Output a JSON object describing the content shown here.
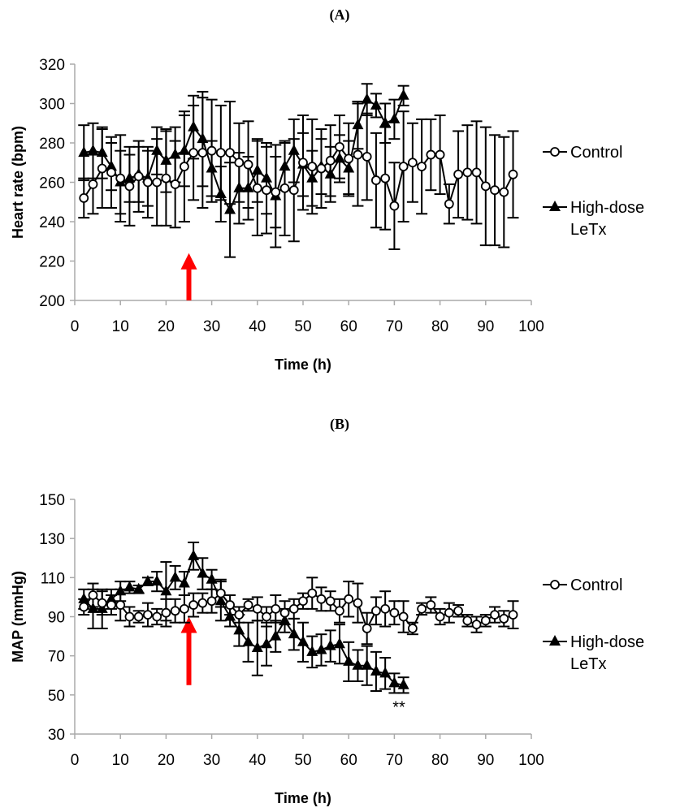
{
  "chart_data": [
    {
      "type": "line",
      "panel_label": "(A)",
      "xlabel": "Time (h)",
      "ylabel": "Heart rate (bpm)",
      "xlim": [
        0,
        100
      ],
      "ylim": [
        200,
        320
      ],
      "xticks": [
        0,
        10,
        20,
        30,
        40,
        50,
        60,
        70,
        80,
        90,
        100
      ],
      "yticks": [
        200,
        220,
        240,
        260,
        280,
        300,
        320
      ],
      "grid": false,
      "legend_position": "right",
      "series": [
        {
          "name": "Control",
          "marker": "open-circle",
          "x": [
            2,
            4,
            6,
            8,
            10,
            12,
            14,
            16,
            18,
            20,
            22,
            24,
            26,
            28,
            30,
            32,
            34,
            36,
            38,
            40,
            42,
            44,
            46,
            48,
            50,
            52,
            54,
            56,
            58,
            60,
            62,
            64,
            66,
            68,
            70,
            72,
            74,
            76,
            78,
            80,
            82,
            84,
            86,
            88,
            90,
            92,
            94,
            96
          ],
          "values": [
            252,
            259,
            267,
            265,
            262,
            258,
            263,
            260,
            260,
            262,
            259,
            268,
            275,
            275,
            276,
            275,
            275,
            270,
            269,
            257,
            256,
            255,
            257,
            256,
            270,
            268,
            267,
            271,
            278,
            272,
            274,
            273,
            261,
            262,
            248,
            268,
            270,
            268,
            274,
            274,
            249,
            264,
            265,
            265,
            258,
            256,
            255,
            264
          ],
          "err": [
            10,
            15,
            20,
            18,
            22,
            20,
            18,
            18,
            22,
            24,
            22,
            28,
            24,
            28,
            26,
            24,
            26,
            20,
            22,
            24,
            22,
            18,
            24,
            26,
            24,
            24,
            20,
            18,
            16,
            18,
            26,
            22,
            24,
            26,
            22,
            28,
            20,
            24,
            18,
            20,
            10,
            22,
            24,
            26,
            30,
            28,
            28,
            22
          ]
        },
        {
          "name": "High-dose LeTx",
          "marker": "filled-triangle",
          "x": [
            2,
            4,
            6,
            8,
            10,
            12,
            14,
            16,
            18,
            20,
            22,
            24,
            26,
            28,
            30,
            32,
            34,
            36,
            38,
            40,
            42,
            44,
            46,
            48,
            50,
            52,
            54,
            56,
            58,
            60,
            62,
            64,
            66,
            68,
            70,
            72
          ],
          "values": [
            275,
            276,
            275,
            268,
            260,
            262,
            264,
            262,
            276,
            271,
            274,
            276,
            288,
            282,
            267,
            254,
            246,
            257,
            257,
            266,
            262,
            253,
            268,
            276,
            269,
            262,
            268,
            264,
            272,
            267,
            289,
            302,
            299,
            290,
            292,
            304
          ],
          "err": [
            14,
            14,
            13,
            12,
            16,
            12,
            14,
            14,
            12,
            16,
            14,
            18,
            16,
            24,
            14,
            14,
            24,
            18,
            16,
            16,
            18,
            26,
            12,
            16,
            16,
            14,
            14,
            14,
            12,
            14,
            12,
            8,
            6,
            10,
            10,
            5
          ]
        }
      ],
      "annotations": [
        {
          "type": "red-arrow",
          "x": 25,
          "y_from": 200,
          "y_to": 224
        }
      ]
    },
    {
      "type": "line",
      "panel_label": "(B)",
      "xlabel": "Time (h)",
      "ylabel": "MAP (mmHg)",
      "xlim": [
        0,
        100
      ],
      "ylim": [
        30,
        150
      ],
      "xticks": [
        0,
        10,
        20,
        30,
        40,
        50,
        60,
        70,
        80,
        90,
        100
      ],
      "yticks": [
        30,
        50,
        70,
        90,
        110,
        130,
        150
      ],
      "grid": false,
      "legend_position": "right",
      "series": [
        {
          "name": "Control",
          "marker": "open-circle",
          "x": [
            2,
            4,
            6,
            8,
            10,
            12,
            14,
            16,
            18,
            20,
            22,
            24,
            26,
            28,
            30,
            32,
            34,
            36,
            38,
            40,
            42,
            44,
            46,
            48,
            50,
            52,
            54,
            56,
            58,
            60,
            62,
            64,
            66,
            68,
            70,
            72,
            74,
            76,
            78,
            80,
            82,
            84,
            86,
            88,
            90,
            92,
            94,
            96
          ],
          "values": [
            95,
            101,
            97,
            96,
            96,
            90,
            90,
            91,
            90,
            92,
            93,
            94,
            96,
            97,
            98,
            102,
            96,
            91,
            96,
            94,
            90,
            94,
            92,
            94,
            98,
            102,
            99,
            98,
            93,
            99,
            97,
            84,
            93,
            94,
            92,
            90,
            84,
            94,
            96,
            90,
            92,
            93,
            88,
            86,
            88,
            91,
            89,
            91
          ],
          "err": [
            4,
            6,
            6,
            5,
            8,
            5,
            3,
            6,
            4,
            7,
            6,
            7,
            6,
            5,
            6,
            7,
            5,
            4,
            3,
            6,
            5,
            7,
            6,
            5,
            4,
            8,
            6,
            5,
            6,
            9,
            10,
            8,
            7,
            9,
            6,
            8,
            3,
            3,
            4,
            4,
            5,
            3,
            3,
            4,
            3,
            4,
            4,
            7
          ]
        },
        {
          "name": "High-dose LeTx",
          "marker": "filled-triangle",
          "x": [
            2,
            4,
            6,
            8,
            10,
            12,
            14,
            16,
            18,
            20,
            22,
            24,
            26,
            28,
            30,
            32,
            34,
            36,
            38,
            40,
            42,
            44,
            46,
            48,
            50,
            52,
            54,
            56,
            58,
            60,
            62,
            64,
            66,
            68,
            70,
            72
          ],
          "values": [
            99,
            94,
            94,
            99,
            103,
            105,
            104,
            108,
            108,
            103,
            110,
            107,
            121,
            112,
            109,
            98,
            90,
            83,
            77,
            74,
            76,
            80,
            88,
            81,
            77,
            72,
            73,
            75,
            76,
            67,
            65,
            65,
            62,
            61,
            56,
            55
          ],
          "err": [
            5,
            10,
            10,
            5,
            5,
            3,
            2,
            2,
            5,
            15,
            6,
            6,
            7,
            8,
            5,
            10,
            5,
            8,
            10,
            14,
            11,
            8,
            6,
            8,
            10,
            8,
            8,
            8,
            10,
            10,
            8,
            10,
            10,
            8,
            5,
            4
          ]
        }
      ],
      "annotations": [
        {
          "type": "red-arrow",
          "x": 25,
          "y_from": 55,
          "y_to": 90
        },
        {
          "type": "text",
          "text": "**",
          "x": 71,
          "y": 41
        }
      ]
    }
  ],
  "legend": {
    "control": "Control",
    "highdose_line1": "High-dose",
    "highdose_line2": "LeTx"
  }
}
